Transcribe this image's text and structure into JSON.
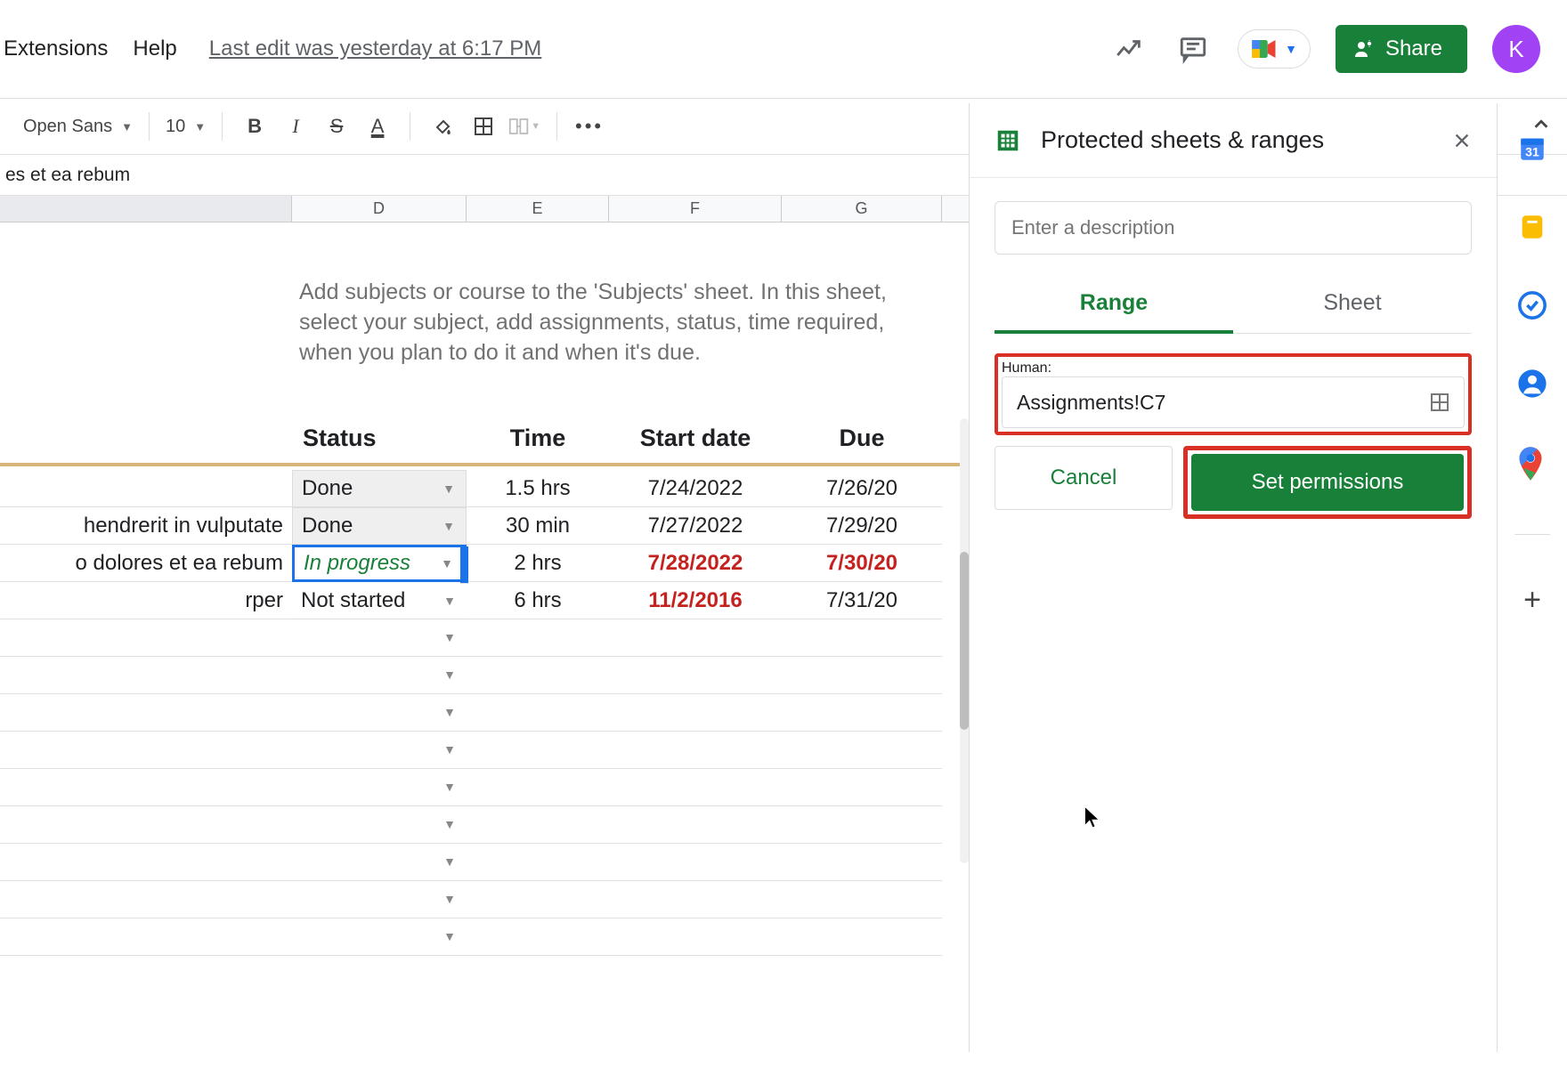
{
  "menu": {
    "extensions": "Extensions",
    "help": "Help"
  },
  "last_edit": "Last edit was yesterday at 6:17 PM",
  "share_label": "Share",
  "avatar_letter": "K",
  "toolbar": {
    "font": "Open Sans",
    "size": "10"
  },
  "formula_bar": "es et ea rebum",
  "columns": {
    "d": "D",
    "e": "E",
    "f": "F",
    "g": "G"
  },
  "instructions": "Add subjects or course to the 'Subjects' sheet. In this sheet, select your subject, add assignments, status, time required, when you plan to do it and when it's due.",
  "headers": {
    "status": "Status",
    "time": "Time",
    "start": "Start date",
    "due": "Due"
  },
  "rows": [
    {
      "label": "",
      "status": "Done",
      "time": "1.5 hrs",
      "start": "7/24/2022",
      "due": "7/26/20",
      "start_red": false,
      "due_red": false,
      "inprog": false,
      "selected": false
    },
    {
      "label": "hendrerit in vulputate",
      "status": "Done",
      "time": "30 min",
      "start": "7/27/2022",
      "due": "7/29/20",
      "start_red": false,
      "due_red": false,
      "inprog": false,
      "selected": false
    },
    {
      "label": "o dolores et ea rebum",
      "status": "In progress",
      "time": "2 hrs",
      "start": "7/28/2022",
      "due": "7/30/20",
      "start_red": true,
      "due_red": true,
      "inprog": true,
      "selected": true
    },
    {
      "label": "rper",
      "status": "Not started",
      "time": "6 hrs",
      "start": "11/2/2016",
      "due": "7/31/20",
      "start_red": true,
      "due_red": false,
      "inprog": false,
      "selected": false
    }
  ],
  "empty_row_count": 9,
  "panel": {
    "title": "Protected sheets & ranges",
    "description_placeholder": "Enter a description",
    "tab_range": "Range",
    "tab_sheet": "Sheet",
    "active_tab": "range",
    "range_value": "Assignments!C7",
    "cancel": "Cancel",
    "set_permissions": "Set permissions"
  },
  "colors": {
    "brand_green": "#188038",
    "highlight_red": "#d93025",
    "avatar": "#a142f4",
    "gold": "#d7b47a"
  }
}
